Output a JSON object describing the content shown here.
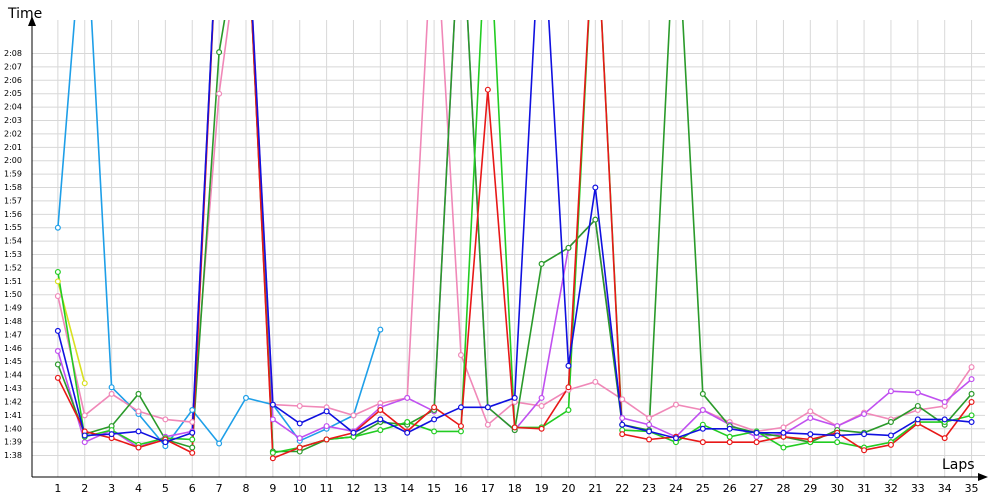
{
  "chart_data": {
    "type": "line",
    "ylabel": "Time",
    "xlabel": "Laps",
    "xlim": [
      0,
      35.5
    ],
    "ylim": [
      96.4,
      130.5
    ],
    "xticks": [
      1,
      2,
      3,
      4,
      5,
      6,
      7,
      8,
      9,
      10,
      11,
      12,
      13,
      14,
      15,
      16,
      17,
      18,
      19,
      20,
      21,
      22,
      23,
      24,
      25,
      26,
      27,
      28,
      29,
      30,
      31,
      32,
      33,
      34,
      35
    ],
    "yticks": [
      {
        "value": 98,
        "label": "1:38"
      },
      {
        "value": 99,
        "label": "1:39"
      },
      {
        "value": 100,
        "label": "1:40"
      },
      {
        "value": 101,
        "label": "1:41"
      },
      {
        "value": 102,
        "label": "1:42"
      },
      {
        "value": 103,
        "label": "1:43"
      },
      {
        "value": 104,
        "label": "1:44"
      },
      {
        "value": 105,
        "label": "1:45"
      },
      {
        "value": 106,
        "label": "1:46"
      },
      {
        "value": 107,
        "label": "1:47"
      },
      {
        "value": 108,
        "label": "1:48"
      },
      {
        "value": 109,
        "label": "1:49"
      },
      {
        "value": 110,
        "label": "1:50"
      },
      {
        "value": 111,
        "label": "1:51"
      },
      {
        "value": 112,
        "label": "1:52"
      },
      {
        "value": 113,
        "label": "1:53"
      },
      {
        "value": 114,
        "label": "1:54"
      },
      {
        "value": 115,
        "label": "1:55"
      },
      {
        "value": 116,
        "label": "1:56"
      },
      {
        "value": 117,
        "label": "1:57"
      },
      {
        "value": 118,
        "label": "1:58"
      },
      {
        "value": 119,
        "label": "1:59"
      },
      {
        "value": 120,
        "label": "2:00"
      },
      {
        "value": 121,
        "label": "2:01"
      },
      {
        "value": 122,
        "label": "2:02"
      },
      {
        "value": 123,
        "label": "2:03"
      },
      {
        "value": 124,
        "label": "2:04"
      },
      {
        "value": 125,
        "label": "2:05"
      },
      {
        "value": 126,
        "label": "2:06"
      },
      {
        "value": 127,
        "label": "2:07"
      },
      {
        "value": 128,
        "label": "2:08"
      }
    ],
    "grid": true,
    "x": [
      1,
      2,
      3,
      4,
      5,
      6,
      7,
      8,
      9,
      10,
      11,
      12,
      13,
      14,
      15,
      16,
      17,
      18,
      19,
      20,
      21,
      22,
      23,
      24,
      25,
      26,
      27,
      28,
      29,
      30,
      31,
      32,
      33,
      34,
      35
    ],
    "series": [
      {
        "color": "#1e9fe8",
        "values": [
          115,
          140,
          103.1,
          101.1,
          98.7,
          101.4,
          98.9,
          102.3,
          101.8,
          99.1,
          100,
          101,
          107.4,
          null,
          null,
          null,
          null,
          null,
          null,
          null,
          null,
          null,
          null,
          null,
          null,
          null,
          null,
          null,
          null,
          null,
          null,
          null,
          null,
          null,
          null
        ]
      },
      {
        "color": "#d8e020",
        "values": [
          111,
          103.4,
          null,
          null,
          null,
          null,
          null,
          null,
          null,
          null,
          null,
          null,
          null,
          null,
          null,
          null,
          null,
          null,
          null,
          null,
          null,
          null,
          null,
          null,
          null,
          null,
          null,
          null,
          null,
          null,
          null,
          null,
          null,
          null,
          null
        ]
      },
      {
        "color": "#f088b8",
        "values": [
          109.9,
          101,
          102.6,
          101.3,
          100.7,
          100.5,
          125,
          140,
          101.8,
          101.7,
          101.6,
          101,
          101.9,
          102.3,
          140,
          105.5,
          100.3,
          102,
          101.7,
          102.9,
          103.5,
          102.2,
          100.8,
          101.8,
          101.4,
          100.5,
          99.8,
          100.1,
          101.3,
          100.2,
          101.2,
          100.7,
          101.4,
          101.7,
          104.6
        ]
      },
      {
        "color": "#c050f0",
        "values": [
          105.8,
          99,
          99.9,
          98.6,
          99.4,
          99.8,
          140,
          140,
          100.7,
          99.3,
          100.2,
          99.8,
          101.6,
          102.3,
          101.3,
          140,
          101.6,
          99.9,
          102.3,
          113.5,
          115.6,
          100.8,
          100.3,
          99.4,
          101.4,
          100.3,
          99.4,
          99.6,
          100.8,
          100.2,
          101.1,
          102.8,
          102.7,
          102,
          103.7
        ]
      },
      {
        "color": "#2a9a2a",
        "values": [
          104.8,
          99.6,
          100.2,
          102.6,
          99.2,
          98.6,
          128.1,
          140,
          98.3,
          98.3,
          99.2,
          99.4,
          100.5,
          100.3,
          101.4,
          140,
          101.6,
          99.9,
          112.3,
          113.5,
          115.6,
          100.3,
          99.9,
          140,
          102.6,
          100.2,
          99.7,
          99.4,
          99,
          99.9,
          99.7,
          100.5,
          101.7,
          100.3,
          102.6
        ]
      },
      {
        "color": "#22cc22",
        "values": [
          111.7,
          99.4,
          99.9,
          98.8,
          99.3,
          99.2,
          140,
          140,
          98.2,
          98.6,
          99.2,
          99.4,
          99.9,
          100.5,
          99.8,
          99.8,
          140,
          100.1,
          100.1,
          101.4,
          140,
          99.9,
          99.8,
          99,
          100.3,
          99.4,
          99.8,
          98.6,
          99,
          99,
          98.6,
          99,
          100.5,
          100.5,
          101
        ]
      },
      {
        "color": "#e81818",
        "values": [
          103.8,
          99.8,
          99.3,
          98.6,
          99.2,
          98.2,
          140,
          140,
          97.8,
          98.6,
          99.2,
          99.7,
          101.4,
          99.8,
          101.6,
          100.2,
          125.3,
          100.1,
          100,
          103.1,
          140,
          99.6,
          99.2,
          99.4,
          99,
          99,
          99,
          99.4,
          99.2,
          99.7,
          98.4,
          98.8,
          100.4,
          99.3,
          102
        ]
      },
      {
        "color": "#1010e0",
        "values": [
          107.3,
          99.5,
          99.6,
          99.8,
          99,
          99.7,
          140,
          140,
          101.8,
          100.4,
          101.3,
          99.7,
          100.7,
          99.7,
          100.7,
          101.6,
          101.6,
          102.3,
          140,
          104.7,
          118,
          100.3,
          99.8,
          99.3,
          100,
          100,
          99.7,
          99.7,
          99.6,
          99.5,
          99.6,
          99.5,
          100.7,
          100.7,
          100.5
        ]
      }
    ]
  }
}
